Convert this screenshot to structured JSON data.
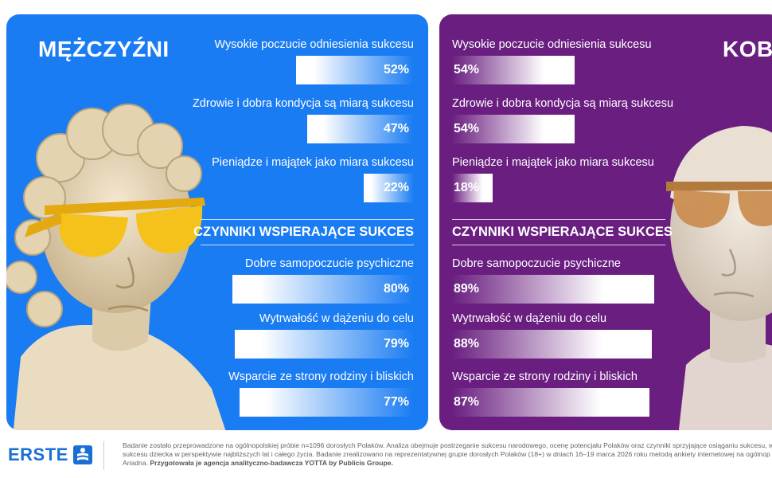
{
  "panels": {
    "men": {
      "title": "MĘŻCZYŹNI",
      "section_title": "CZYNNIKI WSPIERAJĄCE SUKCES"
    },
    "women": {
      "title": "KOBIETY",
      "section_title": "CZYNNIKI WSPIERAJĄCE SUKCES"
    }
  },
  "chart_data": [
    {
      "type": "bar",
      "group": "MĘŻCZYŹNI",
      "categories": [
        "Wysokie poczucie odniesienia sukcesu",
        "Zdrowie i dobra kondycja są miarą sukcesu",
        "Pieniądze i majątek jako miara sukcesu",
        "Dobre samopoczucie psychiczne",
        "Wytrwałość w dążeniu do celu",
        "Wsparcie ze strony rodziny i bliskich"
      ],
      "values": [
        52,
        47,
        22,
        80,
        79,
        77
      ],
      "value_labels": [
        "52%",
        "47%",
        "22%",
        "80%",
        "79%",
        "77%"
      ]
    },
    {
      "type": "bar",
      "group": "KOBIETY",
      "categories": [
        "Wysokie poczucie odniesienia sukcesu",
        "Zdrowie i dobra kondycja są miarą sukcesu",
        "Pieniądze i majątek jako miara sukcesu",
        "Dobre samopoczucie psychiczne",
        "Wytrwałość w dążeniu do celu",
        "Wsparcie ze strony rodziny i bliskich"
      ],
      "values": [
        54,
        54,
        18,
        89,
        88,
        87
      ],
      "value_labels": [
        "54%",
        "54%",
        "18%",
        "89%",
        "88%",
        "87%"
      ]
    }
  ],
  "colors": {
    "men_panel": "#1a7cf2",
    "women_panel": "#6a1f80",
    "men_glasses": "#f5c21b",
    "women_glasses": "#c98a4a",
    "logo": "#1a6fd4"
  },
  "footer": {
    "logo_text": "ERSTE",
    "logo_icon": "erste-s-icon",
    "note_line1": "Badanie zostało przeprowadzone na ogólnopolskiej próbie n=1096 dorosłych Polaków. Analiza obejmuje postrzeganie sukcesu narodowego, ocenę potencjału Polaków oraz czynniki sprzyjające osiąganiu sukcesu, w",
    "note_line2": "sukcesu dziecka w perspektywie najbliższych lat i całego życia. Badanie zrealizowano na reprezentatywnej grupie dorosłych Polaków (18+) w dniach 16–19 marca 2026 roku metodą ankiety internetowej na ogólnop",
    "note_line3_plain": "Ariadna. ",
    "note_line3_bold": "Przygotowała je agencja analityczno-badawcza YOTTA by Publicis Groupe."
  }
}
